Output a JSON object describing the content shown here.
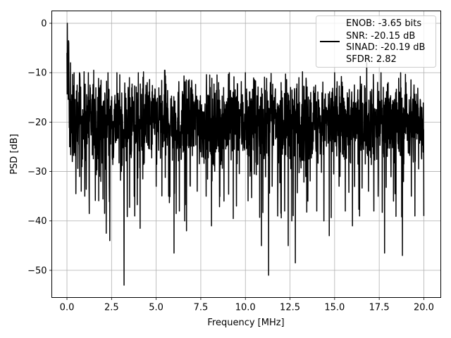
{
  "chart_data": {
    "type": "line",
    "title": "",
    "xlabel": "Frequency [MHz]",
    "ylabel": "PSD [dB]",
    "xlim": [
      -0.85,
      20.95
    ],
    "ylim": [
      -55.5,
      2.5
    ],
    "xticks": [
      0.0,
      2.5,
      5.0,
      7.5,
      10.0,
      12.5,
      15.0,
      17.5,
      20.0
    ],
    "xtick_labels": [
      "0.0",
      "2.5",
      "5.0",
      "7.5",
      "10.0",
      "12.5",
      "15.0",
      "17.5",
      "20.0"
    ],
    "yticks": [
      0,
      -10,
      -20,
      -30,
      -40,
      -50
    ],
    "ytick_labels": [
      "0",
      "−10",
      "−20",
      "−30",
      "−40",
      "−50"
    ],
    "grid": true,
    "legend_position": "top-right",
    "series": [
      {
        "color": "#000000",
        "description": "Dense noise-like PSD, approx. 2000 points from 0 to 20 MHz; band mostly between -12 and -30 dB, mean about -20 dB, with occasional deep dips",
        "points": [
          [
            0.0,
            -6.0
          ],
          [
            0.02,
            0.0
          ],
          [
            0.05,
            -12.0
          ],
          [
            0.1,
            -4.0
          ],
          [
            0.15,
            -25.0
          ],
          [
            0.2,
            -8.0
          ],
          [
            0.3,
            -28.0
          ],
          [
            0.4,
            -10.0
          ],
          [
            0.5,
            -34.5
          ],
          [
            0.7,
            -10.0
          ],
          [
            0.8,
            -34.0
          ],
          [
            1.0,
            -35.0
          ],
          [
            1.2,
            -10.0
          ],
          [
            1.25,
            -38.5
          ],
          [
            1.5,
            -9.5
          ],
          [
            1.9,
            -32.0
          ],
          [
            2.2,
            -42.5
          ],
          [
            2.3,
            -10.0
          ],
          [
            2.4,
            -44.0
          ],
          [
            2.8,
            -10.0
          ],
          [
            3.05,
            -30.0
          ],
          [
            3.2,
            -53.0
          ],
          [
            3.5,
            -11.0
          ],
          [
            3.8,
            -39.0
          ],
          [
            4.0,
            -10.0
          ],
          [
            4.1,
            -41.5
          ],
          [
            4.5,
            -12.0
          ],
          [
            4.25,
            -31.5
          ],
          [
            5.0,
            -11.0
          ],
          [
            5.0,
            -33.0
          ],
          [
            5.5,
            -11.0
          ],
          [
            5.7,
            -35.0
          ],
          [
            6.0,
            -10.0
          ],
          [
            6.0,
            -46.5
          ],
          [
            6.3,
            -38.0
          ],
          [
            6.6,
            -40.0
          ],
          [
            6.7,
            -42.0
          ],
          [
            7.0,
            -12.0
          ],
          [
            7.3,
            -34.0
          ],
          [
            7.8,
            -35.0
          ],
          [
            8.1,
            -9.0
          ],
          [
            8.1,
            -41.0
          ],
          [
            8.5,
            -12.0
          ],
          [
            8.8,
            -36.0
          ],
          [
            9.1,
            -10.0
          ],
          [
            9.5,
            -37.0
          ],
          [
            10.0,
            -10.0
          ],
          [
            10.3,
            -30.0
          ],
          [
            10.5,
            -12.0
          ],
          [
            10.5,
            -30.5
          ],
          [
            10.9,
            -45.0
          ],
          [
            11.3,
            -51.0
          ],
          [
            11.4,
            -12.0
          ],
          [
            11.5,
            -33.0
          ],
          [
            12.0,
            -12.0
          ],
          [
            12.2,
            -38.0
          ],
          [
            12.4,
            -45.0
          ],
          [
            12.6,
            -40.0
          ],
          [
            12.8,
            -48.5
          ],
          [
            13.0,
            -11.0
          ],
          [
            13.5,
            -36.0
          ],
          [
            14.0,
            -10.0
          ],
          [
            14.0,
            -38.0
          ],
          [
            14.4,
            -40.0
          ],
          [
            14.7,
            -43.0
          ],
          [
            15.0,
            -10.0
          ],
          [
            15.3,
            -31.0
          ],
          [
            15.6,
            -38.0
          ],
          [
            16.0,
            -11.0
          ],
          [
            16.0,
            -41.0
          ],
          [
            16.4,
            -39.0
          ],
          [
            16.8,
            -8.0
          ],
          [
            16.9,
            -34.0
          ],
          [
            17.2,
            -38.0
          ],
          [
            17.6,
            -10.0
          ],
          [
            17.8,
            -46.5
          ],
          [
            18.0,
            -12.0
          ],
          [
            18.3,
            -36.0
          ],
          [
            18.7,
            -10.0
          ],
          [
            18.8,
            -47.0
          ],
          [
            19.0,
            -12.0
          ],
          [
            19.3,
            -35.0
          ],
          [
            19.5,
            -39.0
          ],
          [
            20.0,
            -13.5
          ],
          [
            20.0,
            -39.0
          ]
        ]
      }
    ],
    "legend_lines": [
      "ENOB: -3.65 bits",
      "SNR: -20.15 dB",
      "SINAD: -20.19 dB",
      "SFDR: 2.82"
    ]
  }
}
